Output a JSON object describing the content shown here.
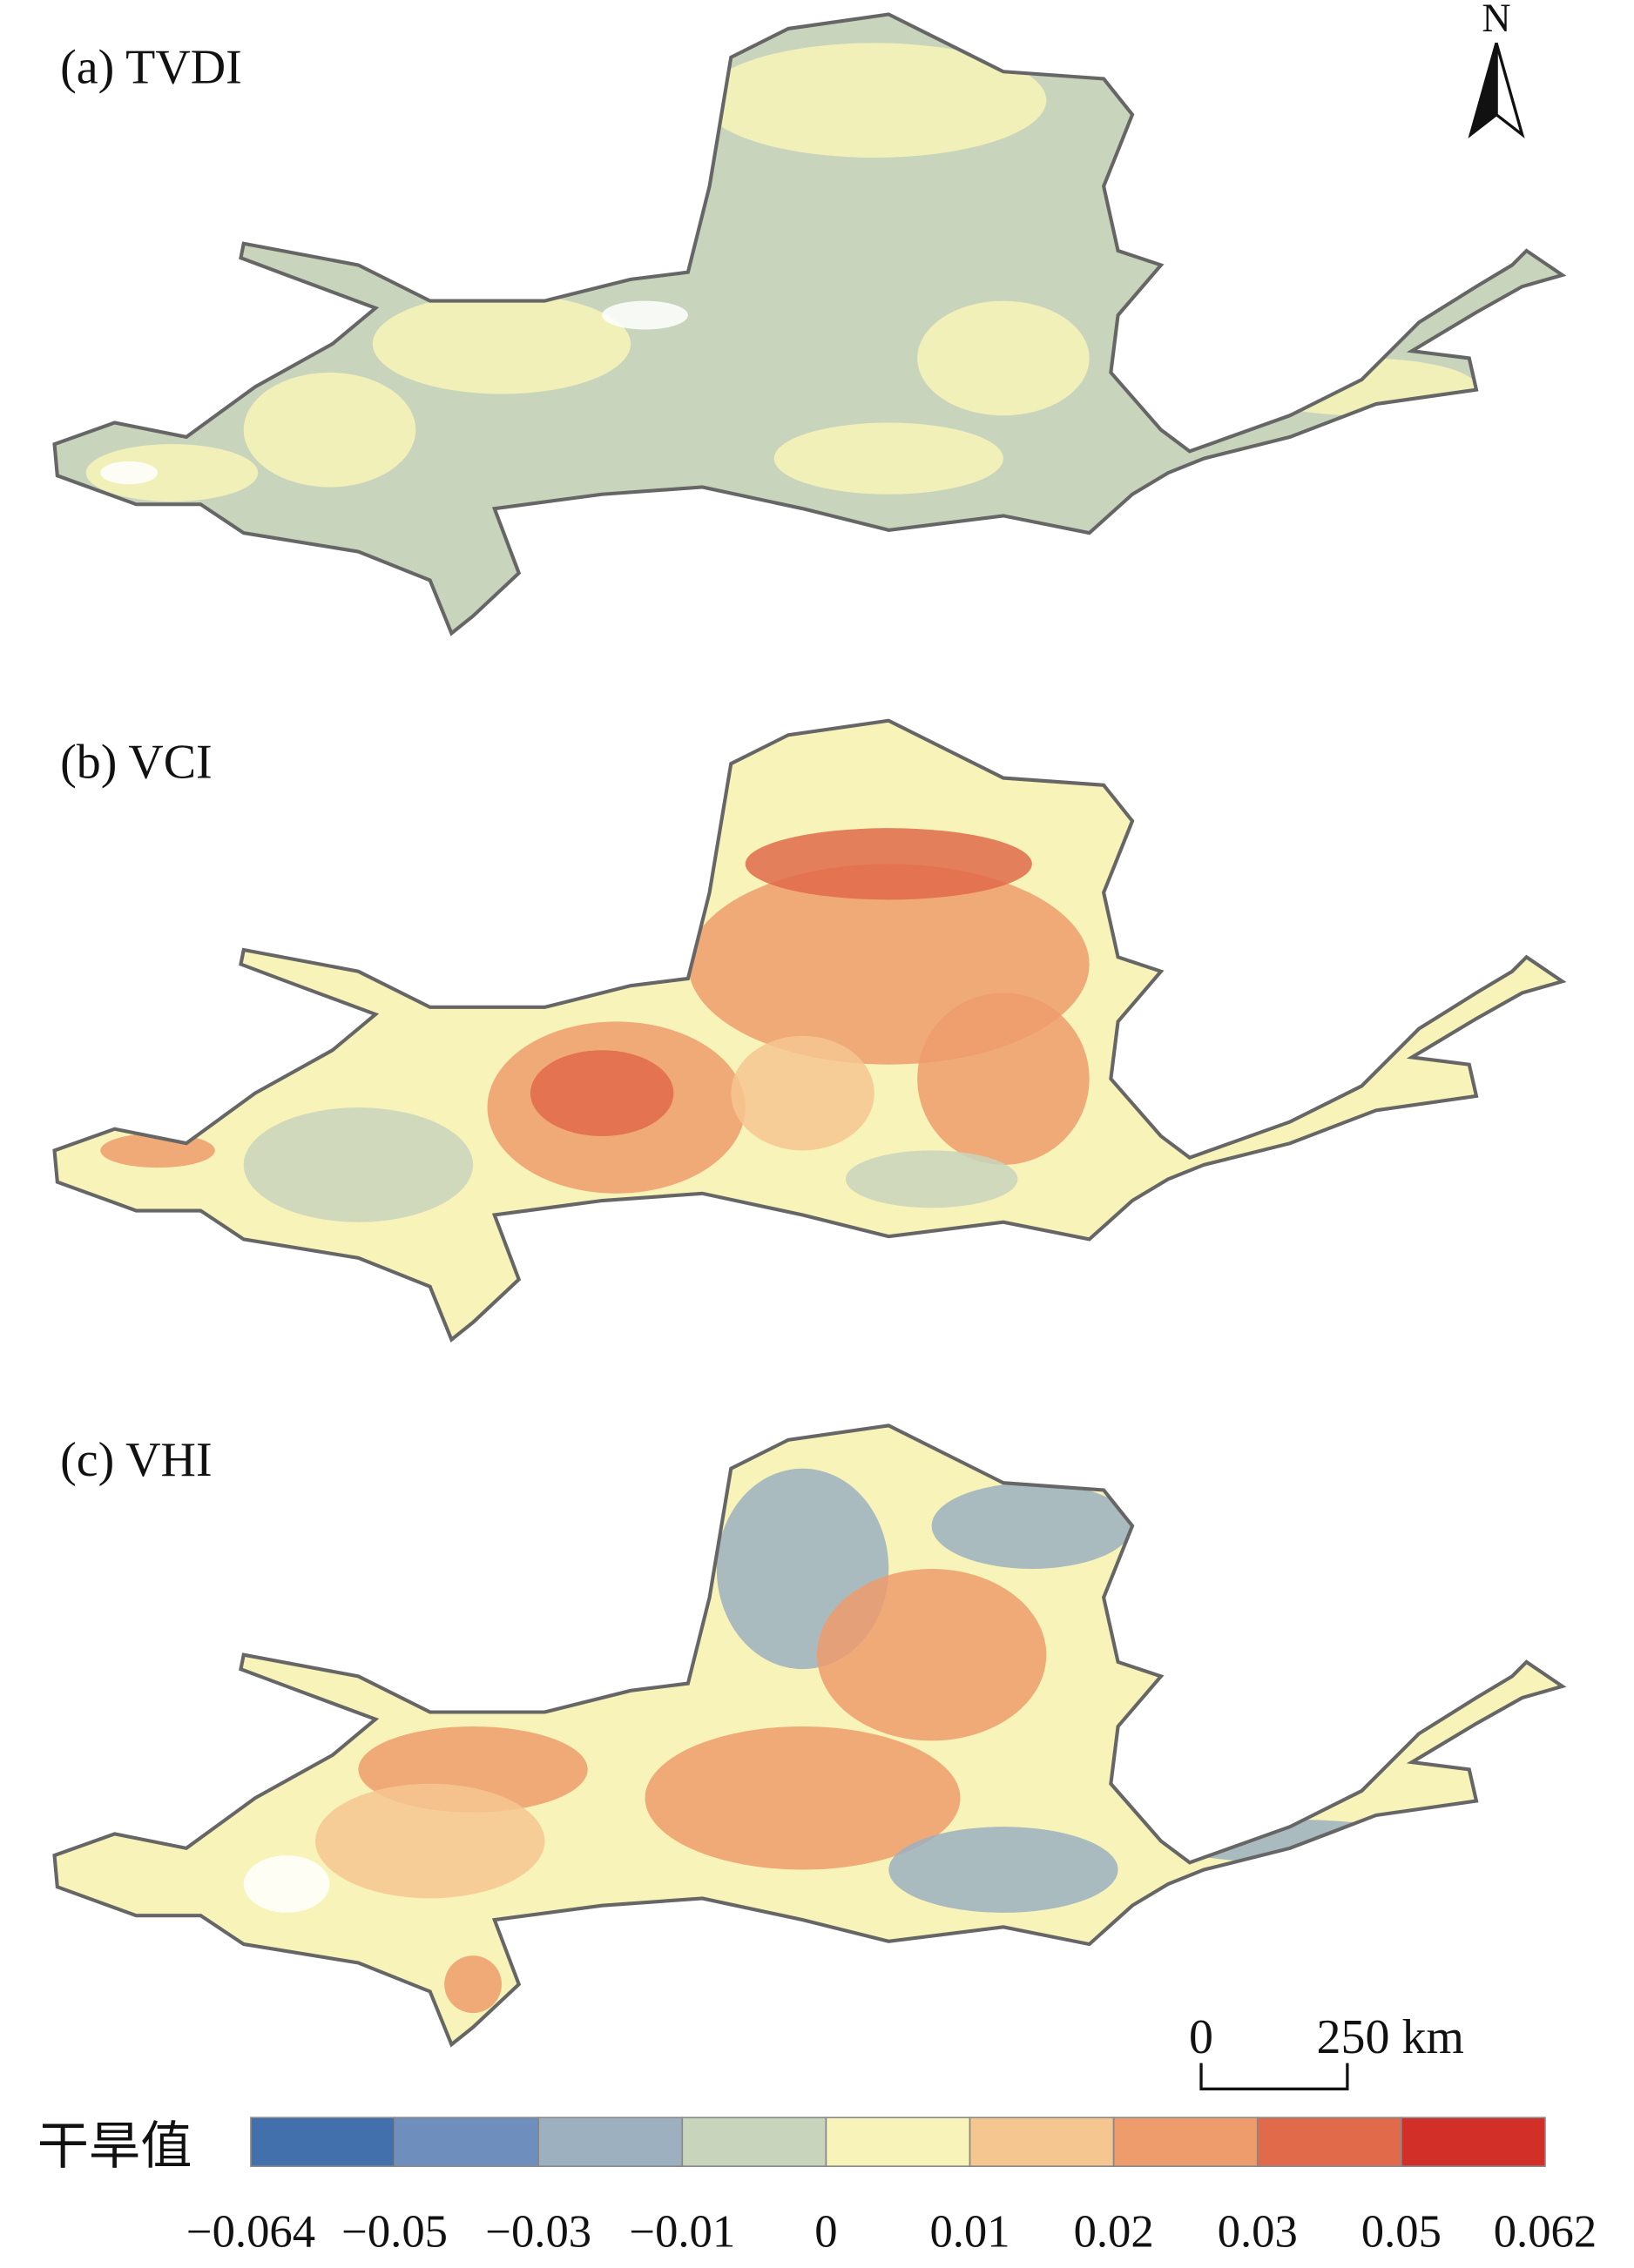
{
  "panels": [
    {
      "label": "(a) TVDI"
    },
    {
      "label": "(b) VCI"
    },
    {
      "label": "(c) VHI"
    }
  ],
  "north_arrow": "N",
  "scale_bar": {
    "labels": [
      "0",
      "250 km"
    ]
  },
  "legend": {
    "title": "干旱值",
    "colors": [
      "#4170ad",
      "#6e8fbd",
      "#9cb0bf",
      "#c9d4bc",
      "#f8f4b9",
      "#f6c690",
      "#ef9c6c",
      "#e06a4a",
      "#d22f28"
    ],
    "ticks": [
      "−0.064",
      "−0.05",
      "−0.03",
      "−0.01",
      "0",
      "0.01",
      "0.02",
      "0.03",
      "0.05",
      "0.062"
    ]
  }
}
